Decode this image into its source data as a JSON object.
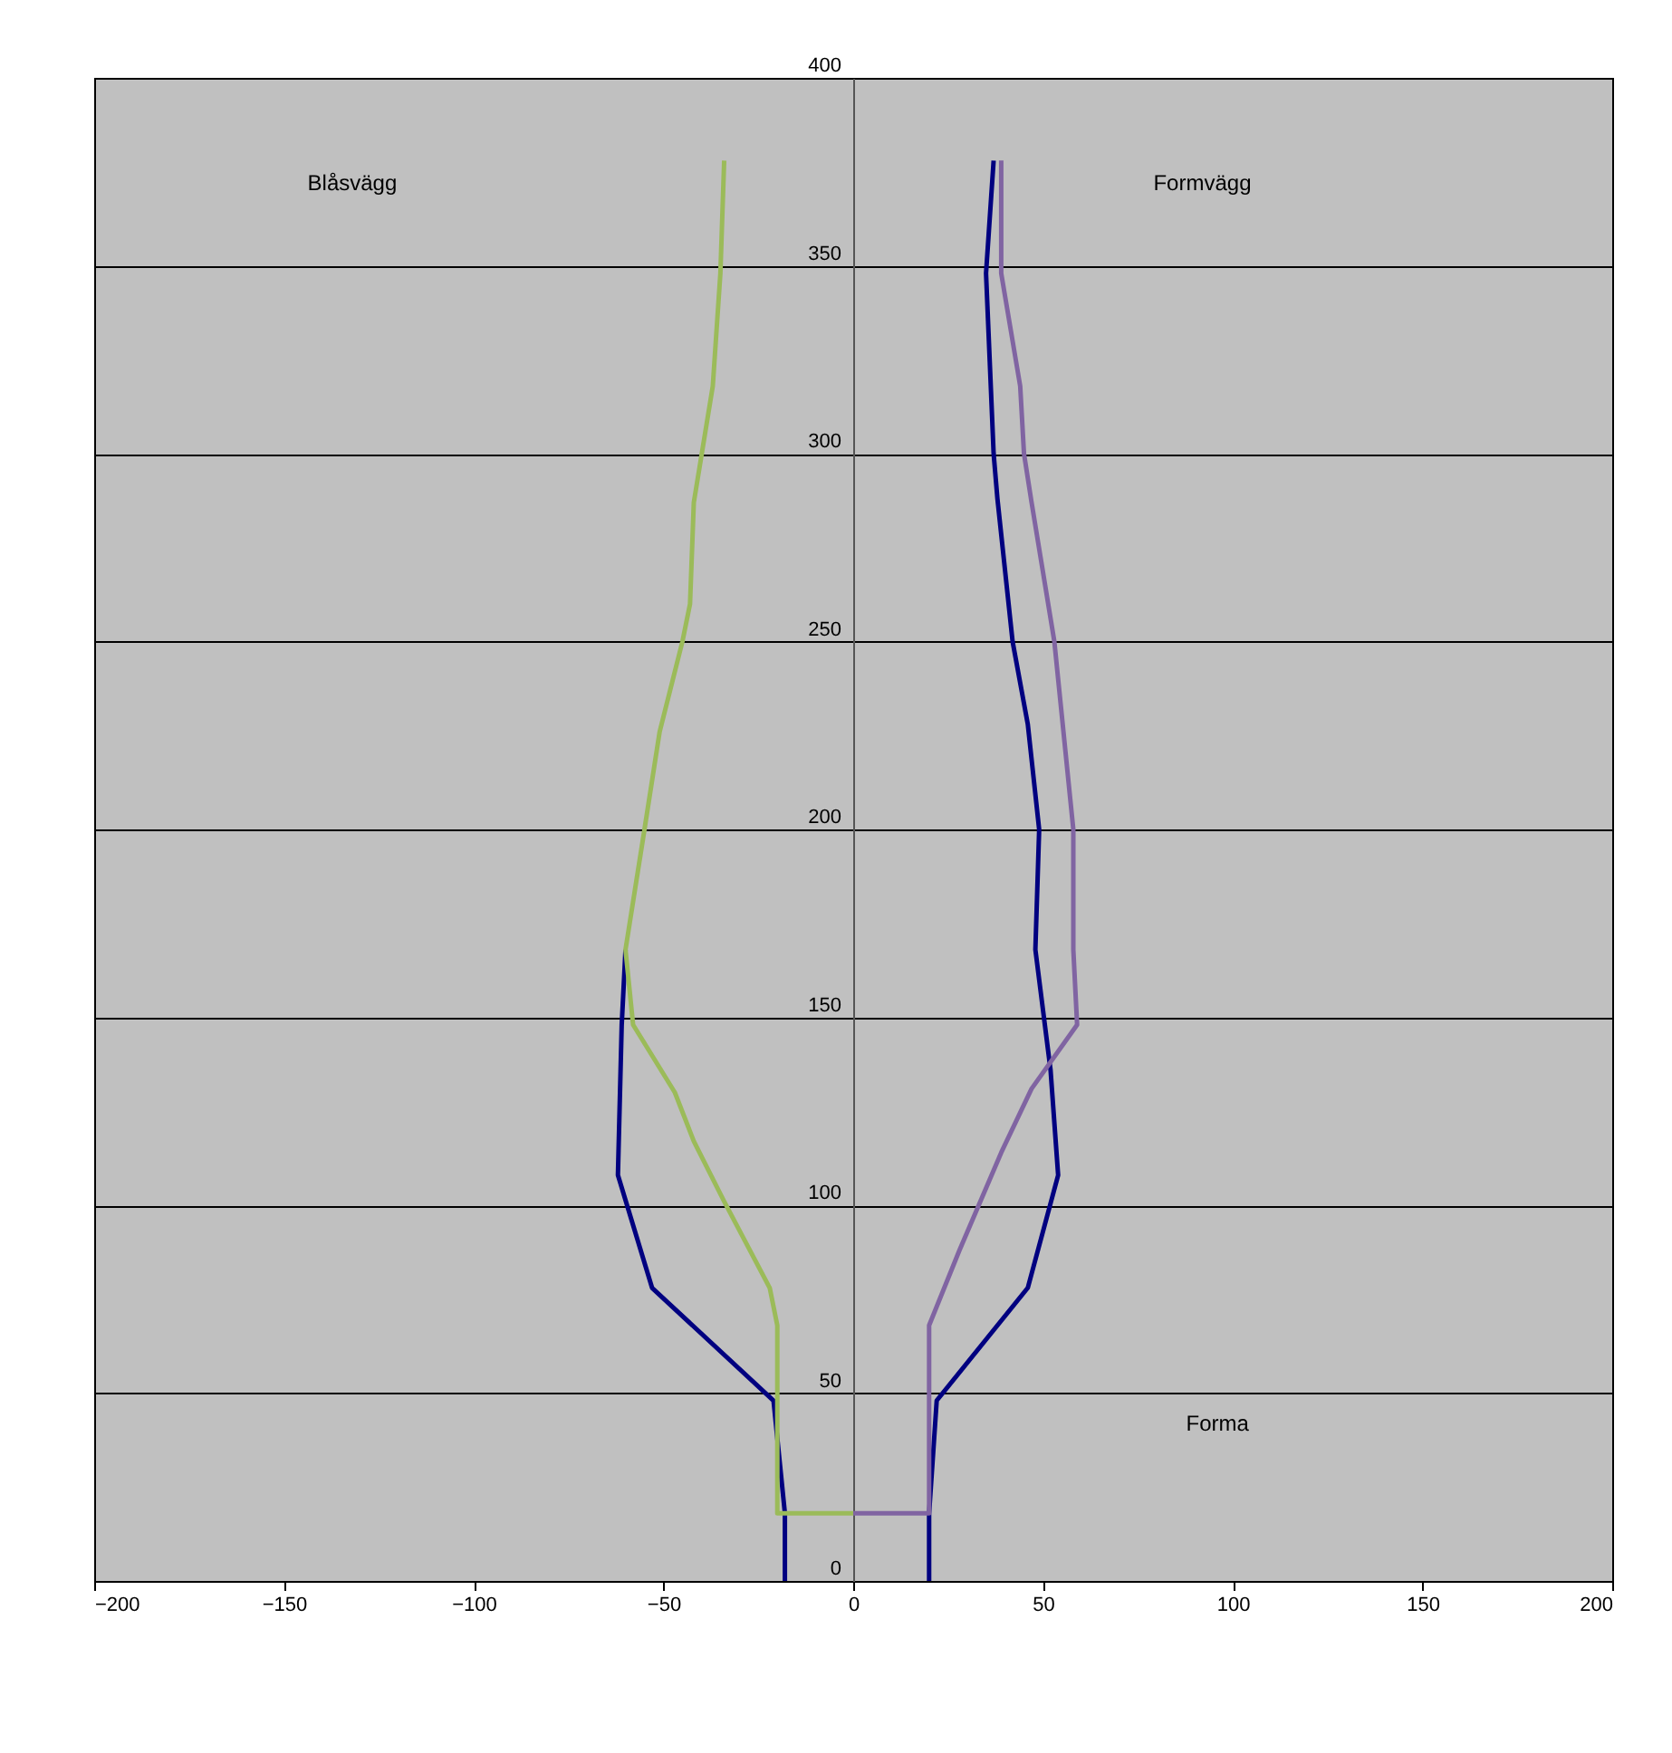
{
  "chart_data": {
    "type": "line",
    "series": [
      {
        "color": "#000080",
        "x": [
          -18,
          -18,
          -21,
          -53,
          -62,
          -61,
          -60
        ],
        "values": [
          0,
          18,
          48,
          78,
          108,
          148,
          168
        ]
      },
      {
        "color": "#000080",
        "x": [
          20,
          20,
          22,
          46,
          54,
          52,
          48,
          49,
          46,
          42,
          38,
          37,
          35,
          37
        ],
        "values": [
          0,
          18,
          48,
          78,
          108,
          136,
          168,
          200,
          228,
          250,
          288,
          300,
          348,
          378
        ]
      },
      {
        "color": "#8064a2",
        "x": [
          0,
          20,
          20,
          20,
          28,
          39,
          47,
          59,
          58,
          58,
          53,
          47,
          45,
          44,
          39,
          39
        ],
        "values": [
          18,
          18,
          48,
          68,
          88,
          114,
          131,
          148,
          168,
          200,
          250,
          287,
          300,
          318,
          348,
          378
        ]
      },
      {
        "color": "#9bbb59",
        "x": [
          0,
          -20,
          -20,
          -20,
          -22,
          -34,
          -42,
          -47,
          -58,
          -60,
          -55,
          -51,
          -45,
          -43,
          -42,
          -37,
          -35,
          -34
        ],
        "values": [
          18,
          18,
          48,
          68,
          78,
          101,
          117,
          130,
          148,
          168,
          200,
          226,
          250,
          260,
          287,
          318,
          348,
          378
        ]
      }
    ],
    "xlim": [
      -200,
      200
    ],
    "xticks": [
      -200,
      -150,
      -100,
      -50,
      0,
      50,
      100,
      150,
      200
    ],
    "ylim": [
      0,
      400
    ],
    "yticks": [
      0,
      50,
      100,
      150,
      200,
      250,
      300,
      350,
      400
    ],
    "grid": "y",
    "marker": "none",
    "line_style": "solid",
    "annotations": [
      "Blåsvägg",
      "Formvägg",
      "Forma"
    ]
  }
}
